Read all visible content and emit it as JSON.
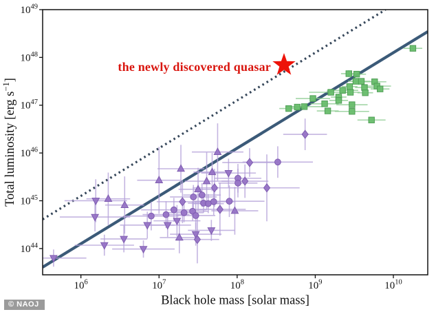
{
  "annotation": {
    "label": "the newly discovered quasar",
    "color": "#d9150e"
  },
  "credit": {
    "label": "© NAOJ",
    "bg": "#9b9b9b",
    "color": "#ffffff"
  },
  "chart_data": {
    "type": "scatter",
    "title": "",
    "xlabel": "Black hole mass [solar mass]",
    "ylabel": "Total luminosity [erg s⁻¹]",
    "ylabel_parts": [
      {
        "t": "Total luminosity [erg s"
      },
      {
        "t": "−1",
        "sup": true
      },
      {
        "t": "]"
      }
    ],
    "x_scale": "log",
    "y_scale": "log",
    "xlim_log": [
      5.51,
      10.44
    ],
    "ylim_log": [
      43.45,
      49.0
    ],
    "grid": false,
    "legend": "none",
    "x_ticks": [
      {
        "log": 6,
        "label": "10^6"
      },
      {
        "log": 7,
        "label": "10^7"
      },
      {
        "log": 8,
        "label": "10^8"
      },
      {
        "log": 9,
        "label": "10^9"
      },
      {
        "log": 10,
        "label": "10^10"
      }
    ],
    "y_ticks": [
      {
        "log": 44,
        "label": "10^44"
      },
      {
        "log": 45,
        "label": "10^45"
      },
      {
        "log": 46,
        "label": "10^46"
      },
      {
        "log": 47,
        "label": "10^47"
      },
      {
        "log": 48,
        "label": "10^48"
      },
      {
        "log": 49,
        "label": "10^49"
      }
    ],
    "lines": [
      {
        "name": "solid-relation-line",
        "style": "solid",
        "slope": 1,
        "intercept_log": 38.1,
        "color": "#3b5a78",
        "width": 4.2
      },
      {
        "name": "dotted-relation-line",
        "style": "dotted",
        "slope": 1,
        "intercept_log": 39.1,
        "color": "#36475a",
        "width": 3.2
      }
    ],
    "point_format": [
      "logM",
      "logL",
      "marker",
      "xerr_dex",
      "yerr_dex"
    ],
    "series": [
      {
        "name": "purple-agn-points",
        "color": "#9673c5",
        "edge_color": "#7e5bb0",
        "errorbar_color": "#b5a3d9",
        "points": [
          [
            5.65,
            43.8,
            "v",
            0.42,
            0.18
          ],
          [
            6.19,
            45.0,
            "v",
            0.4,
            0.45
          ],
          [
            6.35,
            45.04,
            "^",
            0.28,
            0.55
          ],
          [
            6.56,
            44.91,
            "^",
            0.25,
            0.6
          ],
          [
            6.18,
            44.66,
            "v",
            0.45,
            0.3
          ],
          [
            6.85,
            44.49,
            "v",
            0.35,
            0.28
          ],
          [
            7.11,
            44.49,
            "v",
            0.3,
            0.25
          ],
          [
            6.55,
            44.2,
            "v",
            0.3,
            0.28
          ],
          [
            6.3,
            44.07,
            "v",
            0.38,
            0.22
          ],
          [
            6.8,
            43.99,
            "v",
            0.4,
            0.18
          ],
          [
            7.0,
            45.43,
            "^",
            0.28,
            0.7
          ],
          [
            6.9,
            44.68,
            "o",
            0.35,
            0.3
          ],
          [
            7.09,
            44.71,
            "o",
            0.3,
            0.28
          ],
          [
            7.28,
            45.67,
            "^",
            0.3,
            0.5
          ],
          [
            7.68,
            45.6,
            "^",
            0.24,
            0.4
          ],
          [
            7.89,
            45.58,
            "v",
            0.35,
            0.3
          ],
          [
            8.01,
            45.47,
            "o",
            0.3,
            0.3
          ],
          [
            8.1,
            45.41,
            "d",
            0.3,
            0.35
          ],
          [
            8.01,
            45.37,
            "o",
            0.25,
            0.3
          ],
          [
            7.61,
            45.41,
            "^",
            0.28,
            0.6
          ],
          [
            7.71,
            45.27,
            "d",
            0.28,
            0.4
          ],
          [
            7.5,
            45.24,
            "^",
            0.25,
            0.45
          ],
          [
            8.38,
            45.27,
            "d",
            0.42,
            0.7
          ],
          [
            8.16,
            45.8,
            "d",
            0.35,
            0.3
          ],
          [
            8.52,
            45.81,
            "o",
            0.45,
            0.33
          ],
          [
            7.44,
            45.08,
            "o",
            0.3,
            0.25
          ],
          [
            7.55,
            45.12,
            "o",
            0.24,
            0.25
          ],
          [
            7.3,
            44.98,
            "d",
            0.33,
            0.45
          ],
          [
            7.7,
            44.98,
            "o",
            0.28,
            0.28
          ],
          [
            7.9,
            44.99,
            "o",
            0.45,
            0.33
          ],
          [
            7.57,
            44.95,
            "o",
            0.2,
            0.2
          ],
          [
            7.63,
            44.94,
            "o",
            0.2,
            0.2
          ],
          [
            7.19,
            44.81,
            "o",
            0.42,
            0.25
          ],
          [
            7.32,
            44.75,
            "o",
            0.25,
            0.2
          ],
          [
            7.43,
            44.78,
            "o",
            0.2,
            0.2
          ],
          [
            7.47,
            44.69,
            "o",
            0.25,
            0.28
          ],
          [
            7.97,
            44.79,
            "^",
            0.3,
            0.5
          ],
          [
            7.78,
            44.82,
            "d",
            0.33,
            0.55
          ],
          [
            7.23,
            44.58,
            "v",
            0.3,
            0.33
          ],
          [
            7.47,
            44.3,
            "v",
            0.33,
            0.24
          ],
          [
            7.67,
            44.38,
            "v",
            0.3,
            0.22
          ],
          [
            7.26,
            44.23,
            "^",
            0.25,
            0.33
          ],
          [
            7.49,
            44.19,
            "d",
            0.28,
            0.5
          ],
          [
            8.87,
            46.39,
            "d",
            0.28,
            0.33
          ],
          [
            7.75,
            46.02,
            "^",
            0.33,
            0.6
          ]
        ]
      },
      {
        "name": "green-quasar-squares",
        "color": "#68bd6c",
        "edge_color": "#4e9e55",
        "errorbar_color": "#8bca90",
        "points": [
          [
            8.66,
            46.93,
            "s",
            0.12,
            0
          ],
          [
            8.77,
            46.96,
            "s",
            0.1,
            0
          ],
          [
            8.86,
            46.97,
            "s",
            0.24,
            0
          ],
          [
            8.97,
            47.14,
            "s",
            0.22,
            0
          ],
          [
            9.12,
            47.03,
            "s",
            0.18,
            0
          ],
          [
            9.16,
            46.88,
            "s",
            0.14,
            0
          ],
          [
            9.2,
            47.27,
            "s",
            0.28,
            0
          ],
          [
            9.3,
            47.17,
            "s",
            0.1,
            0.07
          ],
          [
            9.3,
            47.1,
            "s",
            0.12,
            0
          ],
          [
            9.35,
            47.31,
            "s",
            0.2,
            0
          ],
          [
            9.43,
            47.66,
            "s",
            0.1,
            0.07
          ],
          [
            9.45,
            47.27,
            "s",
            0.12,
            0.06
          ],
          [
            9.44,
            47.39,
            "s",
            0.1,
            0
          ],
          [
            9.47,
            47.01,
            "s",
            0.2,
            0
          ],
          [
            9.47,
            46.87,
            "s",
            0.22,
            0
          ],
          [
            9.52,
            47.5,
            "s",
            0.1,
            0.06
          ],
          [
            9.53,
            47.65,
            "s",
            0.12,
            0
          ],
          [
            9.59,
            47.5,
            "s",
            0.12,
            0
          ],
          [
            9.63,
            47.37,
            "s",
            0.12,
            0
          ],
          [
            9.64,
            47.26,
            "s",
            0.1,
            0
          ],
          [
            9.72,
            46.69,
            "s",
            0.18,
            0
          ],
          [
            9.76,
            47.49,
            "s",
            0.15,
            0
          ],
          [
            9.79,
            47.4,
            "s",
            0.18,
            0
          ],
          [
            9.83,
            47.34,
            "s",
            0.12,
            0
          ],
          [
            10.25,
            48.19,
            "s",
            0.12,
            0
          ]
        ]
      },
      {
        "name": "newly-discovered-quasar",
        "color": "#ed1309",
        "edge_color": "#ed1309",
        "errorbar_color": "#ed1309",
        "points": [
          [
            8.6,
            47.84,
            "star",
            0,
            0
          ]
        ]
      }
    ]
  }
}
